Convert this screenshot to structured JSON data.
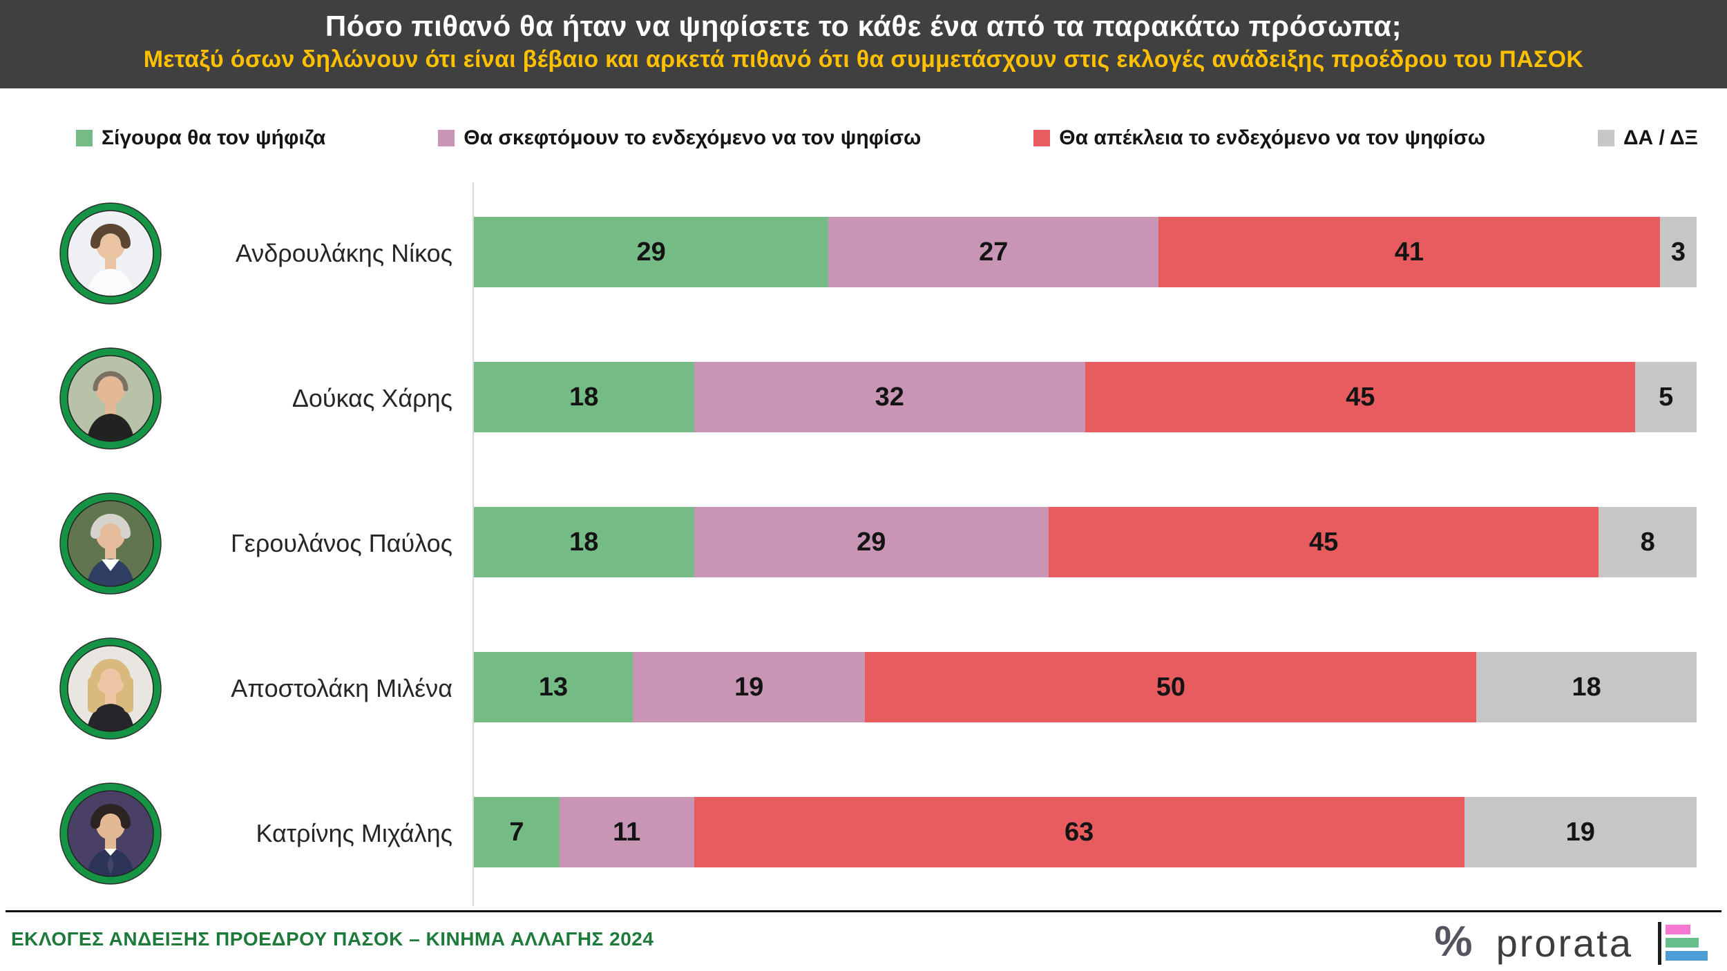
{
  "header": {
    "title": "Πόσο πιθανό θα ήταν να ψηφίσετε το κάθε ένα από τα παρακάτω πρόσωπα;",
    "subtitle": "Μεταξύ όσων δηλώνουν ότι είναι βέβαιο και αρκετά πιθανό ότι θα συμμετάσχουν στις εκλογές ανάδειξης προέδρου του ΠΑΣΟΚ"
  },
  "chart_data": {
    "type": "bar",
    "orientation": "horizontal",
    "stacked": true,
    "unit": "percent",
    "xlim": [
      0,
      100
    ],
    "grid": false,
    "legend_position": "top",
    "categories": [
      "Ανδρουλάκης Νίκος",
      "Δούκας Χάρης",
      "Γερουλάνος Παύλος",
      "Αποστολάκη Μιλένα",
      "Κατρίνης Μιχάλης"
    ],
    "series": [
      {
        "name": "Σίγουρα θα τον ψήφιζα",
        "color": "#74bb86",
        "values": [
          29,
          18,
          18,
          13,
          7
        ]
      },
      {
        "name": "Θα σκεφτόμουν το ενδεχόμενο να τον ψηφίσω",
        "color": "#c895b5",
        "values": [
          27,
          32,
          29,
          19,
          11
        ]
      },
      {
        "name": "Θα απέκλεια το ενδεχόμενο να τον ψηφίσω",
        "color": "#e85c5f",
        "values": [
          41,
          45,
          45,
          50,
          63
        ]
      },
      {
        "name": "ΔΑ / ΔΞ",
        "color": "#c6c6c6",
        "values": [
          3,
          5,
          8,
          18,
          19
        ]
      }
    ]
  },
  "avatars": [
    "man-arms-crossed-white-shirt",
    "man-black-shirt-smiling",
    "man-gray-hair-navy-blazer",
    "woman-blonde-black-top",
    "man-suit-tie"
  ],
  "avatar_ring_color": "#169445",
  "footer": {
    "left_text": "ΕΚΛΟΓΕΣ ΑΝΔΕΙΞΗΣ ΠΡΟΕΔΡΟΥ ΠΑΣΟΚ  – ΚΙΝΗΜΑ ΑΛΛΑΓΗΣ 2024",
    "percent_glyph": "%",
    "brand": "prorata",
    "accent_color": "#1e7a3a",
    "logo_bar_colors": [
      "#f678d0",
      "#68bd8c",
      "#4e9cd6"
    ]
  }
}
